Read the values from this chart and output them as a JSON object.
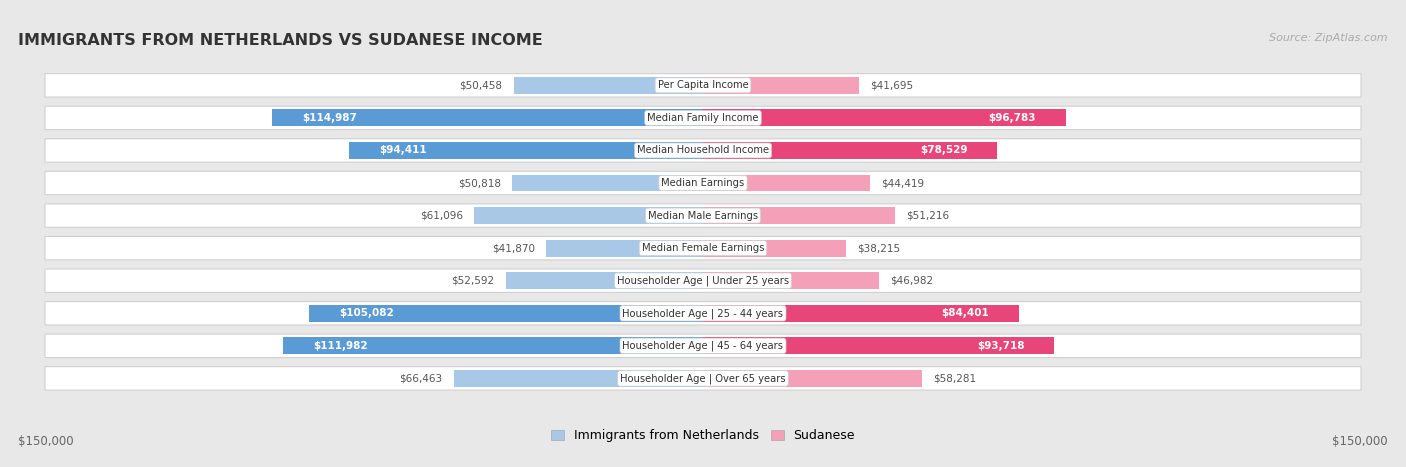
{
  "title": "IMMIGRANTS FROM NETHERLANDS VS SUDANESE INCOME",
  "source": "Source: ZipAtlas.com",
  "categories": [
    "Per Capita Income",
    "Median Family Income",
    "Median Household Income",
    "Median Earnings",
    "Median Male Earnings",
    "Median Female Earnings",
    "Householder Age | Under 25 years",
    "Householder Age | 25 - 44 years",
    "Householder Age | 45 - 64 years",
    "Householder Age | Over 65 years"
  ],
  "netherlands_values": [
    50458,
    114987,
    94411,
    50818,
    61096,
    41870,
    52592,
    105082,
    111982,
    66463
  ],
  "sudanese_values": [
    41695,
    96783,
    78529,
    44419,
    51216,
    38215,
    46982,
    84401,
    93718,
    58281
  ],
  "netherlands_labels": [
    "$50,458",
    "$114,987",
    "$94,411",
    "$50,818",
    "$61,096",
    "$41,870",
    "$52,592",
    "$105,082",
    "$111,982",
    "$66,463"
  ],
  "sudanese_labels": [
    "$41,695",
    "$96,783",
    "$78,529",
    "$44,419",
    "$51,216",
    "$38,215",
    "$46,982",
    "$84,401",
    "$93,718",
    "$58,281"
  ],
  "neth_color_light": "#a8c8e8",
  "neth_color_dark": "#5b9bd5",
  "sud_color_light": "#f4a0b8",
  "sud_color_dark": "#e8457a",
  "netherlands_label_inside": [
    false,
    true,
    true,
    false,
    false,
    false,
    false,
    true,
    true,
    false
  ],
  "sudanese_label_inside": [
    false,
    true,
    true,
    false,
    false,
    false,
    false,
    true,
    true,
    false
  ],
  "neth_large": [
    false,
    true,
    true,
    false,
    false,
    false,
    false,
    true,
    true,
    false
  ],
  "sud_large": [
    false,
    true,
    true,
    false,
    false,
    false,
    false,
    true,
    true,
    false
  ],
  "max_value": 150000,
  "bg_color": "#e8e8e8",
  "row_bg": "#ffffff",
  "row_border": "#d0d0d0",
  "legend_netherlands": "Immigrants from Netherlands",
  "legend_sudanese": "Sudanese",
  "xlabel_left": "$150,000",
  "xlabel_right": "$150,000"
}
